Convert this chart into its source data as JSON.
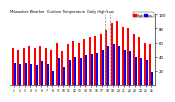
{
  "title": "Milwaukee Weather  Outdoor Temperature  Daily High/Low",
  "high_values": [
    52,
    50,
    52,
    55,
    52,
    55,
    52,
    50,
    60,
    48,
    58,
    62,
    60,
    65,
    68,
    70,
    72,
    78,
    88,
    90,
    82,
    80,
    72,
    68,
    60,
    58
  ],
  "low_values": [
    32,
    30,
    32,
    30,
    28,
    34,
    30,
    20,
    38,
    25,
    35,
    40,
    38,
    42,
    44,
    46,
    50,
    55,
    58,
    55,
    50,
    48,
    40,
    38,
    35,
    18
  ],
  "x_labels": [
    "1",
    "2",
    "3",
    "4",
    "5",
    "6",
    "7",
    "8",
    "9",
    "10",
    "11",
    "12",
    "13",
    "14",
    "15",
    "16",
    "17",
    "18",
    "19",
    "20",
    "21",
    "22",
    "23",
    "24",
    "25",
    "26"
  ],
  "high_color": "#ff0000",
  "low_color": "#0000ff",
  "background_color": "#ffffff",
  "ylim": [
    0,
    100
  ],
  "ytick_values": [
    20,
    40,
    60,
    80,
    100
  ],
  "ytick_labels": [
    "20",
    "40",
    "60",
    "80",
    "100"
  ],
  "bar_width": 0.38,
  "dashed_line_x": [
    17.5,
    18.5
  ],
  "legend_high": "High",
  "legend_low": "Low"
}
